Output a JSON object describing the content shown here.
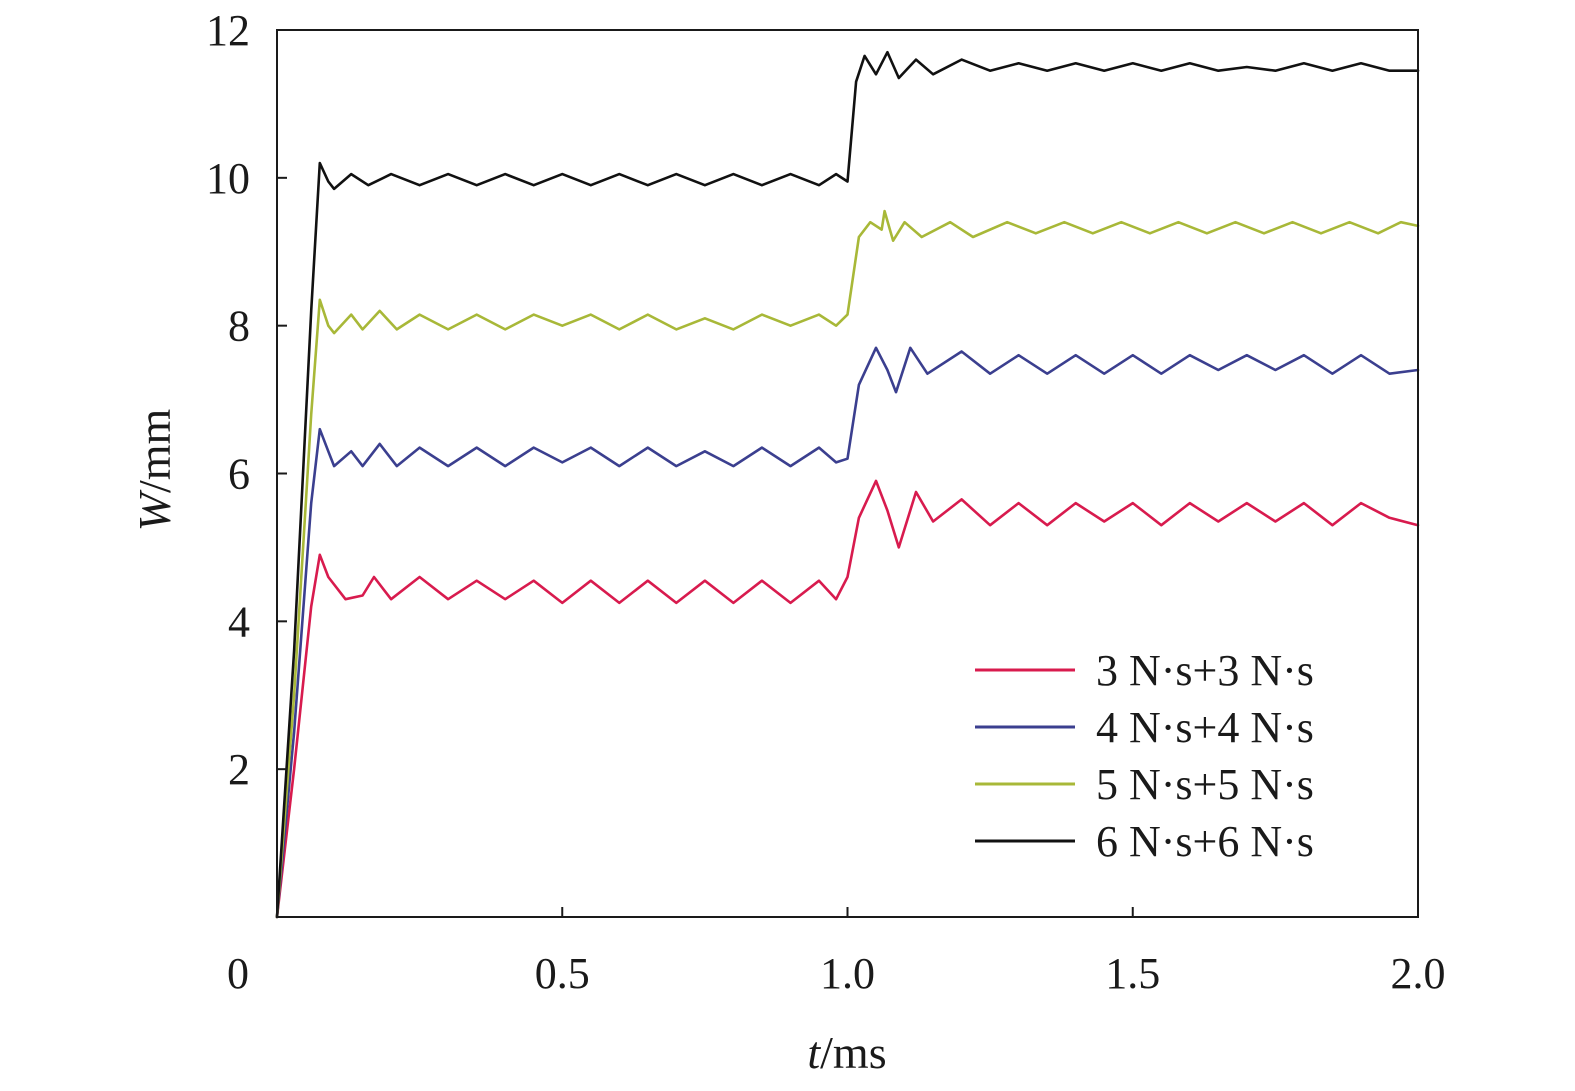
{
  "chart_data": {
    "type": "line",
    "xlabel_italic": "t",
    "xlabel_unit": "/ms",
    "ylabel_italic": "W",
    "ylabel_unit": "/mm",
    "xlim": [
      0,
      2.0
    ],
    "ylim": [
      0,
      12
    ],
    "x_ticks": [
      0.5,
      1.0,
      1.5,
      2.0
    ],
    "x_tick_labels": [
      "0.5",
      "1.0",
      "1.5",
      "2.0"
    ],
    "y_ticks": [
      2,
      4,
      6,
      8,
      10,
      12
    ],
    "y_tick_labels": [
      "2",
      "4",
      "6",
      "8",
      "10",
      "12"
    ],
    "origin_label": "0",
    "grid": false,
    "legend_position": "bottom-right",
    "series": [
      {
        "name": "3 N·s+3 N·s",
        "color": "#d81b4e",
        "points": [
          [
            0,
            0
          ],
          [
            0.03,
            2.0
          ],
          [
            0.06,
            4.2
          ],
          [
            0.075,
            4.9
          ],
          [
            0.09,
            4.6
          ],
          [
            0.12,
            4.3
          ],
          [
            0.15,
            4.35
          ],
          [
            0.17,
            4.6
          ],
          [
            0.2,
            4.3
          ],
          [
            0.25,
            4.6
          ],
          [
            0.3,
            4.3
          ],
          [
            0.35,
            4.55
          ],
          [
            0.4,
            4.3
          ],
          [
            0.45,
            4.55
          ],
          [
            0.5,
            4.25
          ],
          [
            0.55,
            4.55
          ],
          [
            0.6,
            4.25
          ],
          [
            0.65,
            4.55
          ],
          [
            0.7,
            4.25
          ],
          [
            0.75,
            4.55
          ],
          [
            0.8,
            4.25
          ],
          [
            0.85,
            4.55
          ],
          [
            0.9,
            4.25
          ],
          [
            0.95,
            4.55
          ],
          [
            0.98,
            4.3
          ],
          [
            1.0,
            4.6
          ],
          [
            1.02,
            5.4
          ],
          [
            1.05,
            5.9
          ],
          [
            1.07,
            5.5
          ],
          [
            1.09,
            5.0
          ],
          [
            1.12,
            5.75
          ],
          [
            1.15,
            5.35
          ],
          [
            1.2,
            5.65
          ],
          [
            1.25,
            5.3
          ],
          [
            1.3,
            5.6
          ],
          [
            1.35,
            5.3
          ],
          [
            1.4,
            5.6
          ],
          [
            1.45,
            5.35
          ],
          [
            1.5,
            5.6
          ],
          [
            1.55,
            5.3
          ],
          [
            1.6,
            5.6
          ],
          [
            1.65,
            5.35
          ],
          [
            1.7,
            5.6
          ],
          [
            1.75,
            5.35
          ],
          [
            1.8,
            5.6
          ],
          [
            1.85,
            5.3
          ],
          [
            1.9,
            5.6
          ],
          [
            1.95,
            5.4
          ],
          [
            2.0,
            5.3
          ]
        ]
      },
      {
        "name": "4 N·s+4 N·s",
        "color": "#3b3f8f",
        "points": [
          [
            0,
            0
          ],
          [
            0.03,
            2.5
          ],
          [
            0.06,
            5.6
          ],
          [
            0.075,
            6.6
          ],
          [
            0.09,
            6.3
          ],
          [
            0.1,
            6.1
          ],
          [
            0.13,
            6.3
          ],
          [
            0.15,
            6.1
          ],
          [
            0.18,
            6.4
          ],
          [
            0.21,
            6.1
          ],
          [
            0.25,
            6.35
          ],
          [
            0.3,
            6.1
          ],
          [
            0.35,
            6.35
          ],
          [
            0.4,
            6.1
          ],
          [
            0.45,
            6.35
          ],
          [
            0.5,
            6.15
          ],
          [
            0.55,
            6.35
          ],
          [
            0.6,
            6.1
          ],
          [
            0.65,
            6.35
          ],
          [
            0.7,
            6.1
          ],
          [
            0.75,
            6.3
          ],
          [
            0.8,
            6.1
          ],
          [
            0.85,
            6.35
          ],
          [
            0.9,
            6.1
          ],
          [
            0.95,
            6.35
          ],
          [
            0.98,
            6.15
          ],
          [
            1.0,
            6.2
          ],
          [
            1.02,
            7.2
          ],
          [
            1.05,
            7.7
          ],
          [
            1.07,
            7.4
          ],
          [
            1.085,
            7.1
          ],
          [
            1.11,
            7.7
          ],
          [
            1.14,
            7.35
          ],
          [
            1.2,
            7.65
          ],
          [
            1.25,
            7.35
          ],
          [
            1.3,
            7.6
          ],
          [
            1.35,
            7.35
          ],
          [
            1.4,
            7.6
          ],
          [
            1.45,
            7.35
          ],
          [
            1.5,
            7.6
          ],
          [
            1.55,
            7.35
          ],
          [
            1.6,
            7.6
          ],
          [
            1.65,
            7.4
          ],
          [
            1.7,
            7.6
          ],
          [
            1.75,
            7.4
          ],
          [
            1.8,
            7.6
          ],
          [
            1.85,
            7.35
          ],
          [
            1.9,
            7.6
          ],
          [
            1.95,
            7.35
          ],
          [
            2.0,
            7.4
          ]
        ]
      },
      {
        "name": "5 N·s+5 N·s",
        "color": "#a8b838",
        "points": [
          [
            0,
            0
          ],
          [
            0.03,
            3.0
          ],
          [
            0.06,
            6.8
          ],
          [
            0.075,
            8.35
          ],
          [
            0.09,
            8.0
          ],
          [
            0.1,
            7.9
          ],
          [
            0.13,
            8.15
          ],
          [
            0.15,
            7.95
          ],
          [
            0.18,
            8.2
          ],
          [
            0.21,
            7.95
          ],
          [
            0.25,
            8.15
          ],
          [
            0.3,
            7.95
          ],
          [
            0.35,
            8.15
          ],
          [
            0.4,
            7.95
          ],
          [
            0.45,
            8.15
          ],
          [
            0.5,
            8.0
          ],
          [
            0.55,
            8.15
          ],
          [
            0.6,
            7.95
          ],
          [
            0.65,
            8.15
          ],
          [
            0.7,
            7.95
          ],
          [
            0.75,
            8.1
          ],
          [
            0.8,
            7.95
          ],
          [
            0.85,
            8.15
          ],
          [
            0.9,
            8.0
          ],
          [
            0.95,
            8.15
          ],
          [
            0.98,
            8.0
          ],
          [
            1.0,
            8.15
          ],
          [
            1.02,
            9.2
          ],
          [
            1.04,
            9.4
          ],
          [
            1.06,
            9.3
          ],
          [
            1.065,
            9.55
          ],
          [
            1.08,
            9.15
          ],
          [
            1.1,
            9.4
          ],
          [
            1.13,
            9.2
          ],
          [
            1.18,
            9.4
          ],
          [
            1.22,
            9.2
          ],
          [
            1.28,
            9.4
          ],
          [
            1.33,
            9.25
          ],
          [
            1.38,
            9.4
          ],
          [
            1.43,
            9.25
          ],
          [
            1.48,
            9.4
          ],
          [
            1.53,
            9.25
          ],
          [
            1.58,
            9.4
          ],
          [
            1.63,
            9.25
          ],
          [
            1.68,
            9.4
          ],
          [
            1.73,
            9.25
          ],
          [
            1.78,
            9.4
          ],
          [
            1.83,
            9.25
          ],
          [
            1.88,
            9.4
          ],
          [
            1.93,
            9.25
          ],
          [
            1.97,
            9.4
          ],
          [
            2.0,
            9.35
          ]
        ]
      },
      {
        "name": "6 N·s+6 N·s",
        "color": "#111111",
        "points": [
          [
            0,
            0
          ],
          [
            0.03,
            3.6
          ],
          [
            0.06,
            8.2
          ],
          [
            0.075,
            10.2
          ],
          [
            0.09,
            9.95
          ],
          [
            0.1,
            9.85
          ],
          [
            0.13,
            10.05
          ],
          [
            0.16,
            9.9
          ],
          [
            0.2,
            10.05
          ],
          [
            0.25,
            9.9
          ],
          [
            0.3,
            10.05
          ],
          [
            0.35,
            9.9
          ],
          [
            0.4,
            10.05
          ],
          [
            0.45,
            9.9
          ],
          [
            0.5,
            10.05
          ],
          [
            0.55,
            9.9
          ],
          [
            0.6,
            10.05
          ],
          [
            0.65,
            9.9
          ],
          [
            0.7,
            10.05
          ],
          [
            0.75,
            9.9
          ],
          [
            0.8,
            10.05
          ],
          [
            0.85,
            9.9
          ],
          [
            0.9,
            10.05
          ],
          [
            0.95,
            9.9
          ],
          [
            0.98,
            10.05
          ],
          [
            1.0,
            9.95
          ],
          [
            1.015,
            11.3
          ],
          [
            1.03,
            11.65
          ],
          [
            1.05,
            11.4
          ],
          [
            1.07,
            11.7
          ],
          [
            1.09,
            11.35
          ],
          [
            1.12,
            11.6
          ],
          [
            1.15,
            11.4
          ],
          [
            1.2,
            11.6
          ],
          [
            1.25,
            11.45
          ],
          [
            1.3,
            11.55
          ],
          [
            1.35,
            11.45
          ],
          [
            1.4,
            11.55
          ],
          [
            1.45,
            11.45
          ],
          [
            1.5,
            11.55
          ],
          [
            1.55,
            11.45
          ],
          [
            1.6,
            11.55
          ],
          [
            1.65,
            11.45
          ],
          [
            1.7,
            11.5
          ],
          [
            1.75,
            11.45
          ],
          [
            1.8,
            11.55
          ],
          [
            1.85,
            11.45
          ],
          [
            1.9,
            11.55
          ],
          [
            1.95,
            11.45
          ],
          [
            2.0,
            11.45
          ]
        ]
      }
    ]
  }
}
